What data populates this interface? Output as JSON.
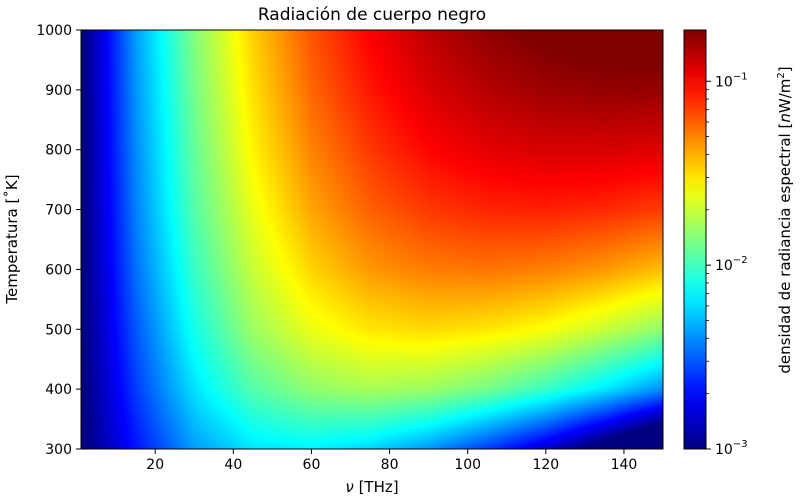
{
  "chart_data": {
    "type": "heatmap",
    "title": "Radiación de cuerpo negro",
    "xlabel_symbol": "ν",
    "xlabel_unit": " [THz]",
    "ylabel": "Temperatura [˚K]",
    "colorbar_label_main": "densidad de radiancia espectral  [",
    "colorbar_label_unit_n": "n",
    "colorbar_label_unit_rest": "W/m",
    "colorbar_label_sup": "2",
    "colorbar_label_close": "]",
    "xlim": [
      1,
      150
    ],
    "ylim": [
      300,
      1000
    ],
    "x_ticks": [
      20,
      40,
      60,
      80,
      100,
      120,
      140
    ],
    "y_ticks": [
      300,
      400,
      500,
      600,
      700,
      800,
      900,
      1000
    ],
    "colorbar": {
      "scale": "log",
      "range": [
        0.001,
        0.19
      ],
      "colormap": "jet",
      "ticks": [
        {
          "value": 0.001,
          "base": "10",
          "exp": "−3"
        },
        {
          "value": 0.01,
          "base": "10",
          "exp": "−2"
        },
        {
          "value": 0.1,
          "base": "10",
          "exp": "−1"
        }
      ]
    },
    "grid": {
      "x": [
        1,
        15,
        30,
        45,
        60,
        75,
        90,
        105,
        120,
        135,
        150
      ],
      "y": [
        300,
        400,
        500,
        600,
        700,
        800,
        900,
        1000
      ],
      "values": [
        [
          0.00094,
          0.0021,
          0.0043,
          0.0063,
          0.0067,
          0.0058,
          0.0042,
          0.0026,
          0.0015,
          0.00075,
          0.00035
        ],
        [
          0.00094,
          0.0026,
          0.0062,
          0.011,
          0.015,
          0.017,
          0.016,
          0.013,
          0.0095,
          0.0064,
          0.004
        ],
        [
          0.00094,
          0.003,
          0.0079,
          0.016,
          0.024,
          0.03,
          0.032,
          0.03,
          0.026,
          0.02,
          0.015
        ],
        [
          0.00094,
          0.0034,
          0.0095,
          0.02,
          0.033,
          0.045,
          0.052,
          0.054,
          0.051,
          0.045,
          0.037
        ],
        [
          0.00094,
          0.0037,
          0.011,
          0.024,
          0.042,
          0.06,
          0.074,
          0.082,
          0.084,
          0.08,
          0.072
        ],
        [
          0.00094,
          0.0039,
          0.012,
          0.028,
          0.05,
          0.074,
          0.097,
          0.113,
          0.121,
          0.121,
          0.115
        ],
        [
          0.00094,
          0.0041,
          0.013,
          0.031,
          0.058,
          0.088,
          0.119,
          0.144,
          0.162,
          0.17,
          0.168
        ],
        [
          0.00094,
          0.0043,
          0.014,
          0.034,
          0.064,
          0.1,
          0.139,
          0.174,
          0.2,
          0.217,
          0.224
        ]
      ]
    }
  }
}
